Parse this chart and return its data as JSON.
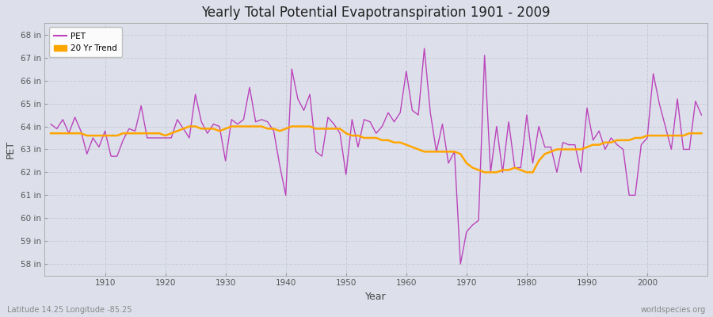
{
  "title": "Yearly Total Potential Evapotranspiration 1901 - 2009",
  "xlabel": "Year",
  "ylabel": "PET",
  "footer_left": "Latitude 14.25 Longitude -85.25",
  "footer_right": "worldspecies.org",
  "pet_color": "#bb44bb",
  "trend_color": "#ffa500",
  "background_color": "#dde0eb",
  "plot_bg_color": "#dde0eb",
  "grid_color": "#c8ccd8",
  "ylim": [
    57.5,
    68.5
  ],
  "yticks": [
    58,
    59,
    60,
    61,
    62,
    63,
    64,
    65,
    66,
    67,
    68
  ],
  "ytick_labels": [
    "58 in",
    "59 in",
    "60 in",
    "61 in",
    "62 in",
    "63 in",
    "64 in",
    "65 in",
    "66 in",
    "67 in",
    "68 in"
  ],
  "xlim": [
    1900,
    2010
  ],
  "xticks": [
    1910,
    1920,
    1930,
    1940,
    1950,
    1960,
    1970,
    1980,
    1990,
    2000
  ],
  "years": [
    1901,
    1902,
    1903,
    1904,
    1905,
    1906,
    1907,
    1908,
    1909,
    1910,
    1911,
    1912,
    1913,
    1914,
    1915,
    1916,
    1917,
    1918,
    1919,
    1920,
    1921,
    1922,
    1923,
    1924,
    1925,
    1926,
    1927,
    1928,
    1929,
    1930,
    1931,
    1932,
    1933,
    1934,
    1935,
    1936,
    1937,
    1938,
    1939,
    1940,
    1941,
    1942,
    1943,
    1944,
    1945,
    1946,
    1947,
    1948,
    1949,
    1950,
    1951,
    1952,
    1953,
    1954,
    1955,
    1956,
    1957,
    1958,
    1959,
    1960,
    1961,
    1962,
    1963,
    1964,
    1965,
    1966,
    1967,
    1968,
    1969,
    1970,
    1971,
    1972,
    1973,
    1974,
    1975,
    1976,
    1977,
    1978,
    1979,
    1980,
    1981,
    1982,
    1983,
    1984,
    1985,
    1986,
    1987,
    1988,
    1989,
    1990,
    1991,
    1992,
    1993,
    1994,
    1995,
    1996,
    1997,
    1998,
    1999,
    2000,
    2001,
    2002,
    2003,
    2004,
    2005,
    2006,
    2007,
    2008,
    2009
  ],
  "pet": [
    64.1,
    63.9,
    64.3,
    63.7,
    64.4,
    63.8,
    62.8,
    63.5,
    63.1,
    63.8,
    62.7,
    62.7,
    63.4,
    63.9,
    63.8,
    64.9,
    63.5,
    63.5,
    63.5,
    63.5,
    63.5,
    64.3,
    63.9,
    63.5,
    65.4,
    64.2,
    63.7,
    64.1,
    64.0,
    62.5,
    64.3,
    64.1,
    64.3,
    65.7,
    64.2,
    64.3,
    64.2,
    63.8,
    62.3,
    61.0,
    66.5,
    65.2,
    64.7,
    65.4,
    62.9,
    62.7,
    64.4,
    64.1,
    63.7,
    61.9,
    64.3,
    63.1,
    64.3,
    64.2,
    63.7,
    64.0,
    64.6,
    64.2,
    64.6,
    66.4,
    64.7,
    64.5,
    67.4,
    64.6,
    62.9,
    64.1,
    62.4,
    62.9,
    58.0,
    59.4,
    59.7,
    59.9,
    67.1,
    62.0,
    64.0,
    62.0,
    64.2,
    62.2,
    62.2,
    64.5,
    62.4,
    64.0,
    63.1,
    63.1,
    62.0,
    63.3,
    63.2,
    63.2,
    62.0,
    64.8,
    63.4,
    63.8,
    63.0,
    63.5,
    63.2,
    63.0,
    61.0,
    61.0,
    63.2,
    63.5,
    66.3,
    65.0,
    64.0,
    63.0,
    65.2,
    63.0,
    63.0,
    65.1,
    64.5
  ],
  "trend_years": [
    1901,
    1902,
    1903,
    1904,
    1905,
    1906,
    1907,
    1908,
    1909,
    1910,
    1911,
    1912,
    1913,
    1914,
    1915,
    1916,
    1917,
    1918,
    1919,
    1920,
    1921,
    1922,
    1923,
    1924,
    1925,
    1926,
    1927,
    1928,
    1929,
    1930,
    1931,
    1932,
    1933,
    1934,
    1935,
    1936,
    1937,
    1938,
    1939,
    1940,
    1941,
    1942,
    1943,
    1944,
    1945,
    1946,
    1947,
    1948,
    1949,
    1950,
    1951,
    1952,
    1953,
    1954,
    1955,
    1956,
    1957,
    1958,
    1959,
    1960,
    1961,
    1962,
    1963,
    1964,
    1965,
    1966,
    1967,
    1968,
    1969,
    1970,
    1971,
    1972,
    1973,
    1974,
    1975,
    1976,
    1977,
    1978,
    1979,
    1980,
    1981,
    1982,
    1983,
    1984,
    1985,
    1986,
    1987,
    1988,
    1989,
    1990,
    1991,
    1992,
    1993,
    1994,
    1995,
    1996,
    1997,
    1998,
    1999,
    2000,
    2001,
    2002,
    2003,
    2004,
    2005,
    2006,
    2007,
    2008,
    2009
  ],
  "trend": [
    63.7,
    63.7,
    63.7,
    63.7,
    63.7,
    63.7,
    63.6,
    63.6,
    63.6,
    63.6,
    63.6,
    63.6,
    63.7,
    63.7,
    63.7,
    63.7,
    63.7,
    63.7,
    63.7,
    63.6,
    63.7,
    63.8,
    63.9,
    64.0,
    64.0,
    63.9,
    63.9,
    63.9,
    63.8,
    63.9,
    64.0,
    64.0,
    64.0,
    64.0,
    64.0,
    64.0,
    63.9,
    63.9,
    63.8,
    63.9,
    64.0,
    64.0,
    64.0,
    64.0,
    63.9,
    63.9,
    63.9,
    63.9,
    63.9,
    63.7,
    63.6,
    63.6,
    63.5,
    63.5,
    63.5,
    63.4,
    63.4,
    63.3,
    63.3,
    63.2,
    63.1,
    63.0,
    62.9,
    62.9,
    62.9,
    62.9,
    62.9,
    62.9,
    62.8,
    62.4,
    62.2,
    62.1,
    62.0,
    62.0,
    62.0,
    62.1,
    62.1,
    62.2,
    62.1,
    62.0,
    62.0,
    62.5,
    62.8,
    62.9,
    63.0,
    63.0,
    63.0,
    63.0,
    63.0,
    63.1,
    63.2,
    63.2,
    63.3,
    63.3,
    63.4,
    63.4,
    63.4,
    63.5,
    63.5,
    63.6,
    63.6,
    63.6,
    63.6,
    63.6,
    63.6,
    63.6,
    63.7,
    63.7,
    63.7
  ]
}
